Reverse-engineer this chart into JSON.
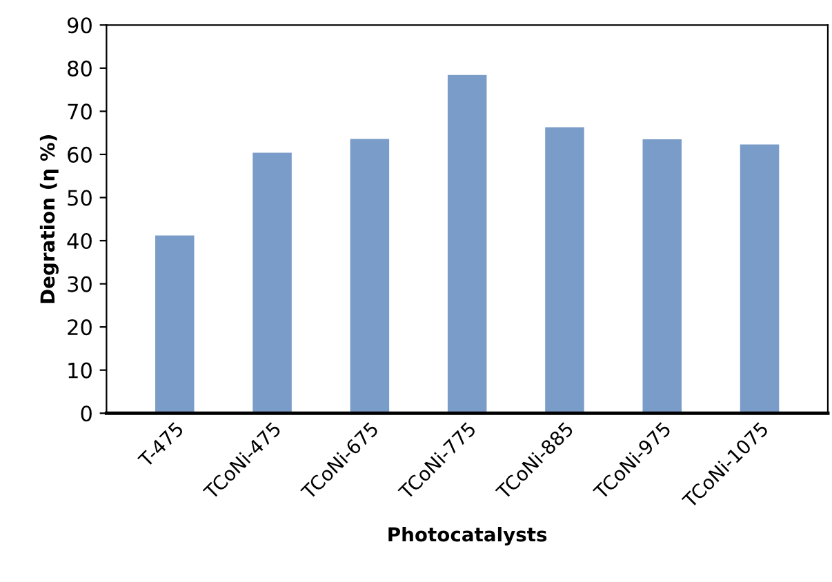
{
  "chart_data": {
    "type": "bar",
    "xlabel": "Photocatalysts",
    "ylabel": "Degration (η %)",
    "categories": [
      "T-475",
      "TCoNi-475",
      "TCoNi-675",
      "TCoNi-775",
      "TCoNi-885",
      "TCoNi-975",
      "TCoNi-1075"
    ],
    "values": [
      41.2,
      60.4,
      63.6,
      78.4,
      66.3,
      63.5,
      62.3
    ],
    "color": "#7a9cc8",
    "ylim": [
      0,
      90
    ],
    "yticks": [
      0,
      10,
      20,
      30,
      40,
      50,
      60,
      70,
      80,
      90
    ],
    "grid": false,
    "legend": false
  }
}
